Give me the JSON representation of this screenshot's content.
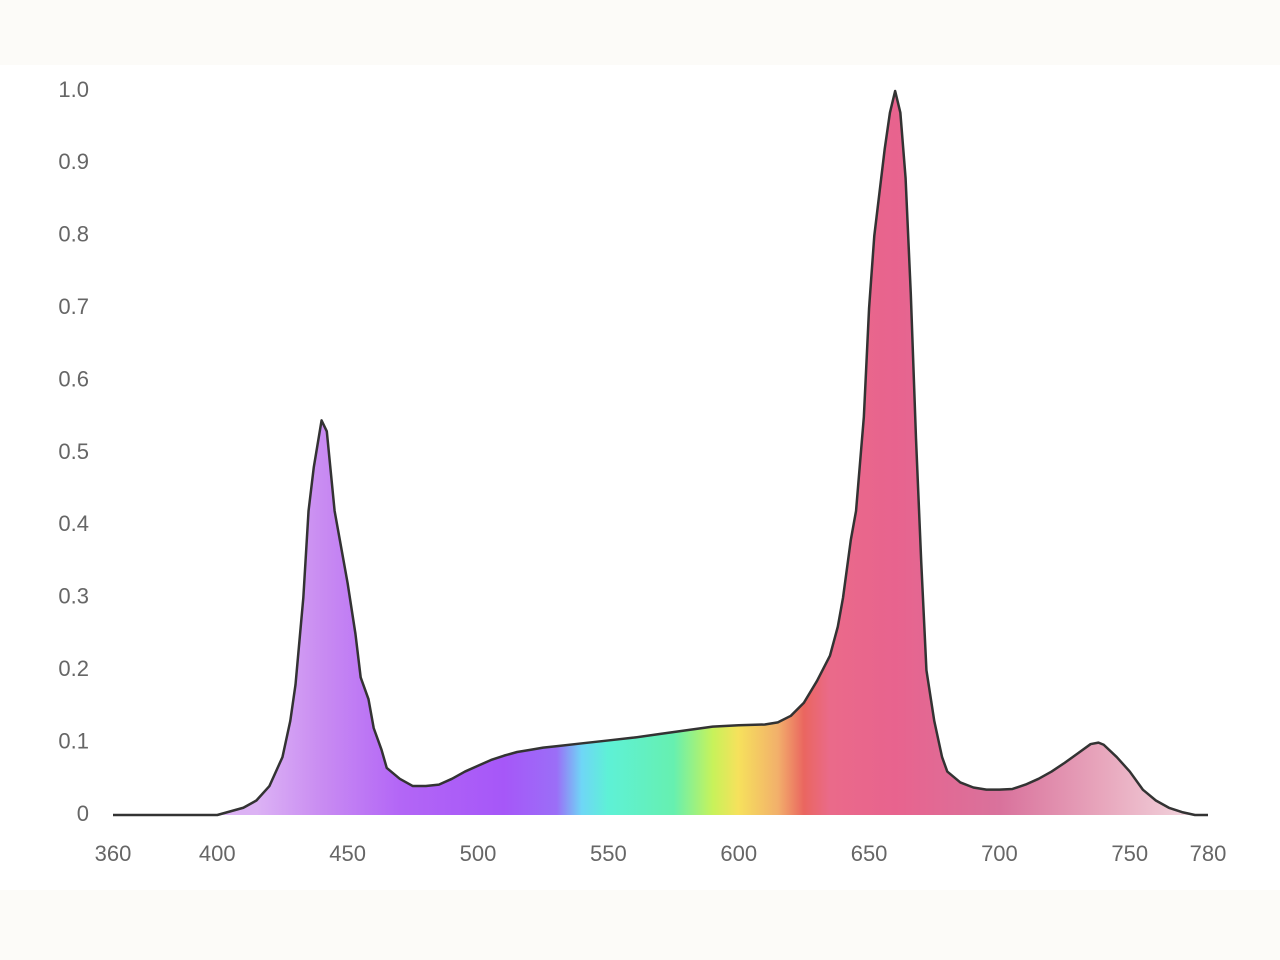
{
  "chart_data": {
    "type": "area",
    "x": [
      360,
      370,
      380,
      390,
      400,
      405,
      410,
      415,
      420,
      425,
      428,
      430,
      433,
      435,
      437,
      440,
      442,
      445,
      447,
      450,
      453,
      455,
      458,
      460,
      463,
      465,
      470,
      475,
      480,
      485,
      490,
      495,
      500,
      505,
      510,
      515,
      520,
      525,
      530,
      540,
      550,
      560,
      570,
      580,
      590,
      600,
      610,
      615,
      620,
      625,
      630,
      635,
      638,
      640,
      643,
      645,
      648,
      650,
      652,
      654,
      656,
      658,
      660,
      662,
      664,
      666,
      668,
      670,
      672,
      675,
      678,
      680,
      685,
      690,
      695,
      700,
      705,
      710,
      715,
      720,
      725,
      730,
      735,
      738,
      740,
      745,
      750,
      755,
      760,
      765,
      770,
      775,
      780
    ],
    "values": [
      0,
      0,
      0,
      0,
      0,
      0.005,
      0.01,
      0.02,
      0.04,
      0.08,
      0.13,
      0.18,
      0.3,
      0.42,
      0.48,
      0.545,
      0.53,
      0.42,
      0.38,
      0.32,
      0.25,
      0.19,
      0.16,
      0.12,
      0.09,
      0.065,
      0.05,
      0.04,
      0.04,
      0.042,
      0.05,
      0.06,
      0.068,
      0.076,
      0.082,
      0.087,
      0.09,
      0.093,
      0.095,
      0.099,
      0.103,
      0.107,
      0.112,
      0.117,
      0.122,
      0.124,
      0.125,
      0.128,
      0.137,
      0.155,
      0.185,
      0.22,
      0.26,
      0.3,
      0.38,
      0.42,
      0.55,
      0.7,
      0.8,
      0.86,
      0.92,
      0.97,
      1.0,
      0.97,
      0.88,
      0.72,
      0.52,
      0.35,
      0.2,
      0.13,
      0.08,
      0.06,
      0.045,
      0.038,
      0.035,
      0.035,
      0.036,
      0.042,
      0.05,
      0.06,
      0.072,
      0.085,
      0.098,
      0.1,
      0.097,
      0.08,
      0.06,
      0.035,
      0.02,
      0.01,
      0.004,
      0,
      0
    ],
    "color": "#333333",
    "xlim": [
      360,
      780
    ],
    "xticks": [
      360,
      400,
      450,
      500,
      550,
      600,
      650,
      700,
      750,
      780
    ],
    "ylim": [
      0,
      1
    ],
    "yticks": [
      0,
      0.1,
      0.2,
      0.3,
      0.4,
      0.5,
      0.6,
      0.7,
      0.8,
      0.9,
      {
        "value": 1,
        "label": "1.0"
      }
    ],
    "grid": true
  }
}
